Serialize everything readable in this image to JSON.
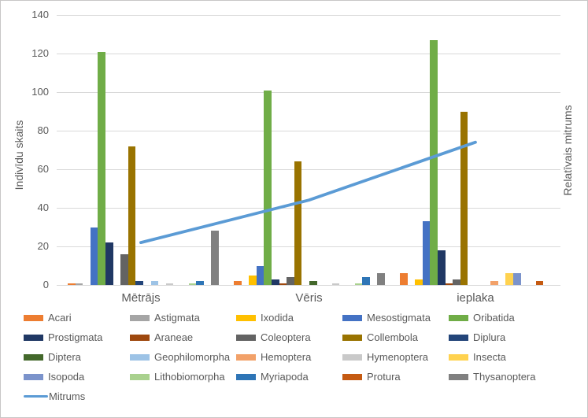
{
  "figure": {
    "background": "#FFFFFF",
    "border_color": "#C8C6C6"
  },
  "chart_data": {
    "type": "bar",
    "title": "",
    "categories": [
      "Mētrājs",
      "Vēris",
      "ieplaka"
    ],
    "y_left": {
      "title": "Indivīdu skaits",
      "min": 0,
      "max": 140,
      "tick_step": 20,
      "ticks": [
        0,
        20,
        40,
        60,
        80,
        100,
        120,
        140
      ]
    },
    "y_right": {
      "title": "Relatīvais mitrums",
      "ticks_visible": false
    },
    "grid": true,
    "legend_position": "bottom",
    "gridline_color": "#D9D9D9",
    "text_color": "#595959",
    "series": [
      {
        "name": "Acari",
        "type": "bar",
        "color": "#ED7D31",
        "values": [
          1,
          2,
          6
        ]
      },
      {
        "name": "Astigmata",
        "type": "bar",
        "color": "#A5A5A5",
        "values": [
          1,
          0,
          0
        ]
      },
      {
        "name": "Ixodida",
        "type": "bar",
        "color": "#FFC000",
        "values": [
          0,
          5,
          3
        ]
      },
      {
        "name": "Mesostigmata",
        "type": "bar",
        "color": "#4472C4",
        "values": [
          30,
          10,
          33
        ]
      },
      {
        "name": "Oribatida",
        "type": "bar",
        "color": "#70AD47",
        "values": [
          121,
          101,
          127
        ]
      },
      {
        "name": "Prostigmata",
        "type": "bar",
        "color": "#203864",
        "values": [
          22,
          3,
          18
        ]
      },
      {
        "name": "Araneae",
        "type": "bar",
        "color": "#9E480E",
        "values": [
          0,
          1,
          1
        ]
      },
      {
        "name": "Coleoptera",
        "type": "bar",
        "color": "#636363",
        "values": [
          16,
          4,
          3
        ]
      },
      {
        "name": "Collembola",
        "type": "bar",
        "color": "#997300",
        "values": [
          72,
          64,
          90
        ]
      },
      {
        "name": "Diplura",
        "type": "bar",
        "color": "#234579",
        "values": [
          2,
          0,
          0
        ]
      },
      {
        "name": "Diptera",
        "type": "bar",
        "color": "#43682B",
        "values": [
          0,
          2,
          0
        ]
      },
      {
        "name": "Geophilomorpha",
        "type": "bar",
        "color": "#9DC3E6",
        "values": [
          2,
          0,
          0
        ]
      },
      {
        "name": "Hemoptera",
        "type": "bar",
        "color": "#F2A169",
        "values": [
          0,
          0,
          2
        ]
      },
      {
        "name": "Hymenoptera",
        "type": "bar",
        "color": "#C9C9C9",
        "values": [
          1,
          1,
          0
        ]
      },
      {
        "name": "Insecta",
        "type": "bar",
        "color": "#FFD24F",
        "values": [
          0,
          0,
          6
        ]
      },
      {
        "name": "Isopoda",
        "type": "bar",
        "color": "#7B93CB",
        "values": [
          0,
          0,
          6
        ]
      },
      {
        "name": "Lithobiomorpha",
        "type": "bar",
        "color": "#A9D18E",
        "values": [
          1,
          1,
          0
        ]
      },
      {
        "name": "Myriapoda",
        "type": "bar",
        "color": "#2E75B6",
        "values": [
          2,
          4,
          0
        ]
      },
      {
        "name": "Protura",
        "type": "bar",
        "color": "#C55A11",
        "values": [
          0,
          0,
          2
        ]
      },
      {
        "name": "Thysanoptera",
        "type": "bar",
        "color": "#808080",
        "values": [
          28,
          6,
          0
        ]
      },
      {
        "name": "Mitrums",
        "type": "line",
        "color": "#5B9BD5",
        "values": [
          22,
          44,
          74
        ],
        "axis": "right"
      }
    ]
  }
}
